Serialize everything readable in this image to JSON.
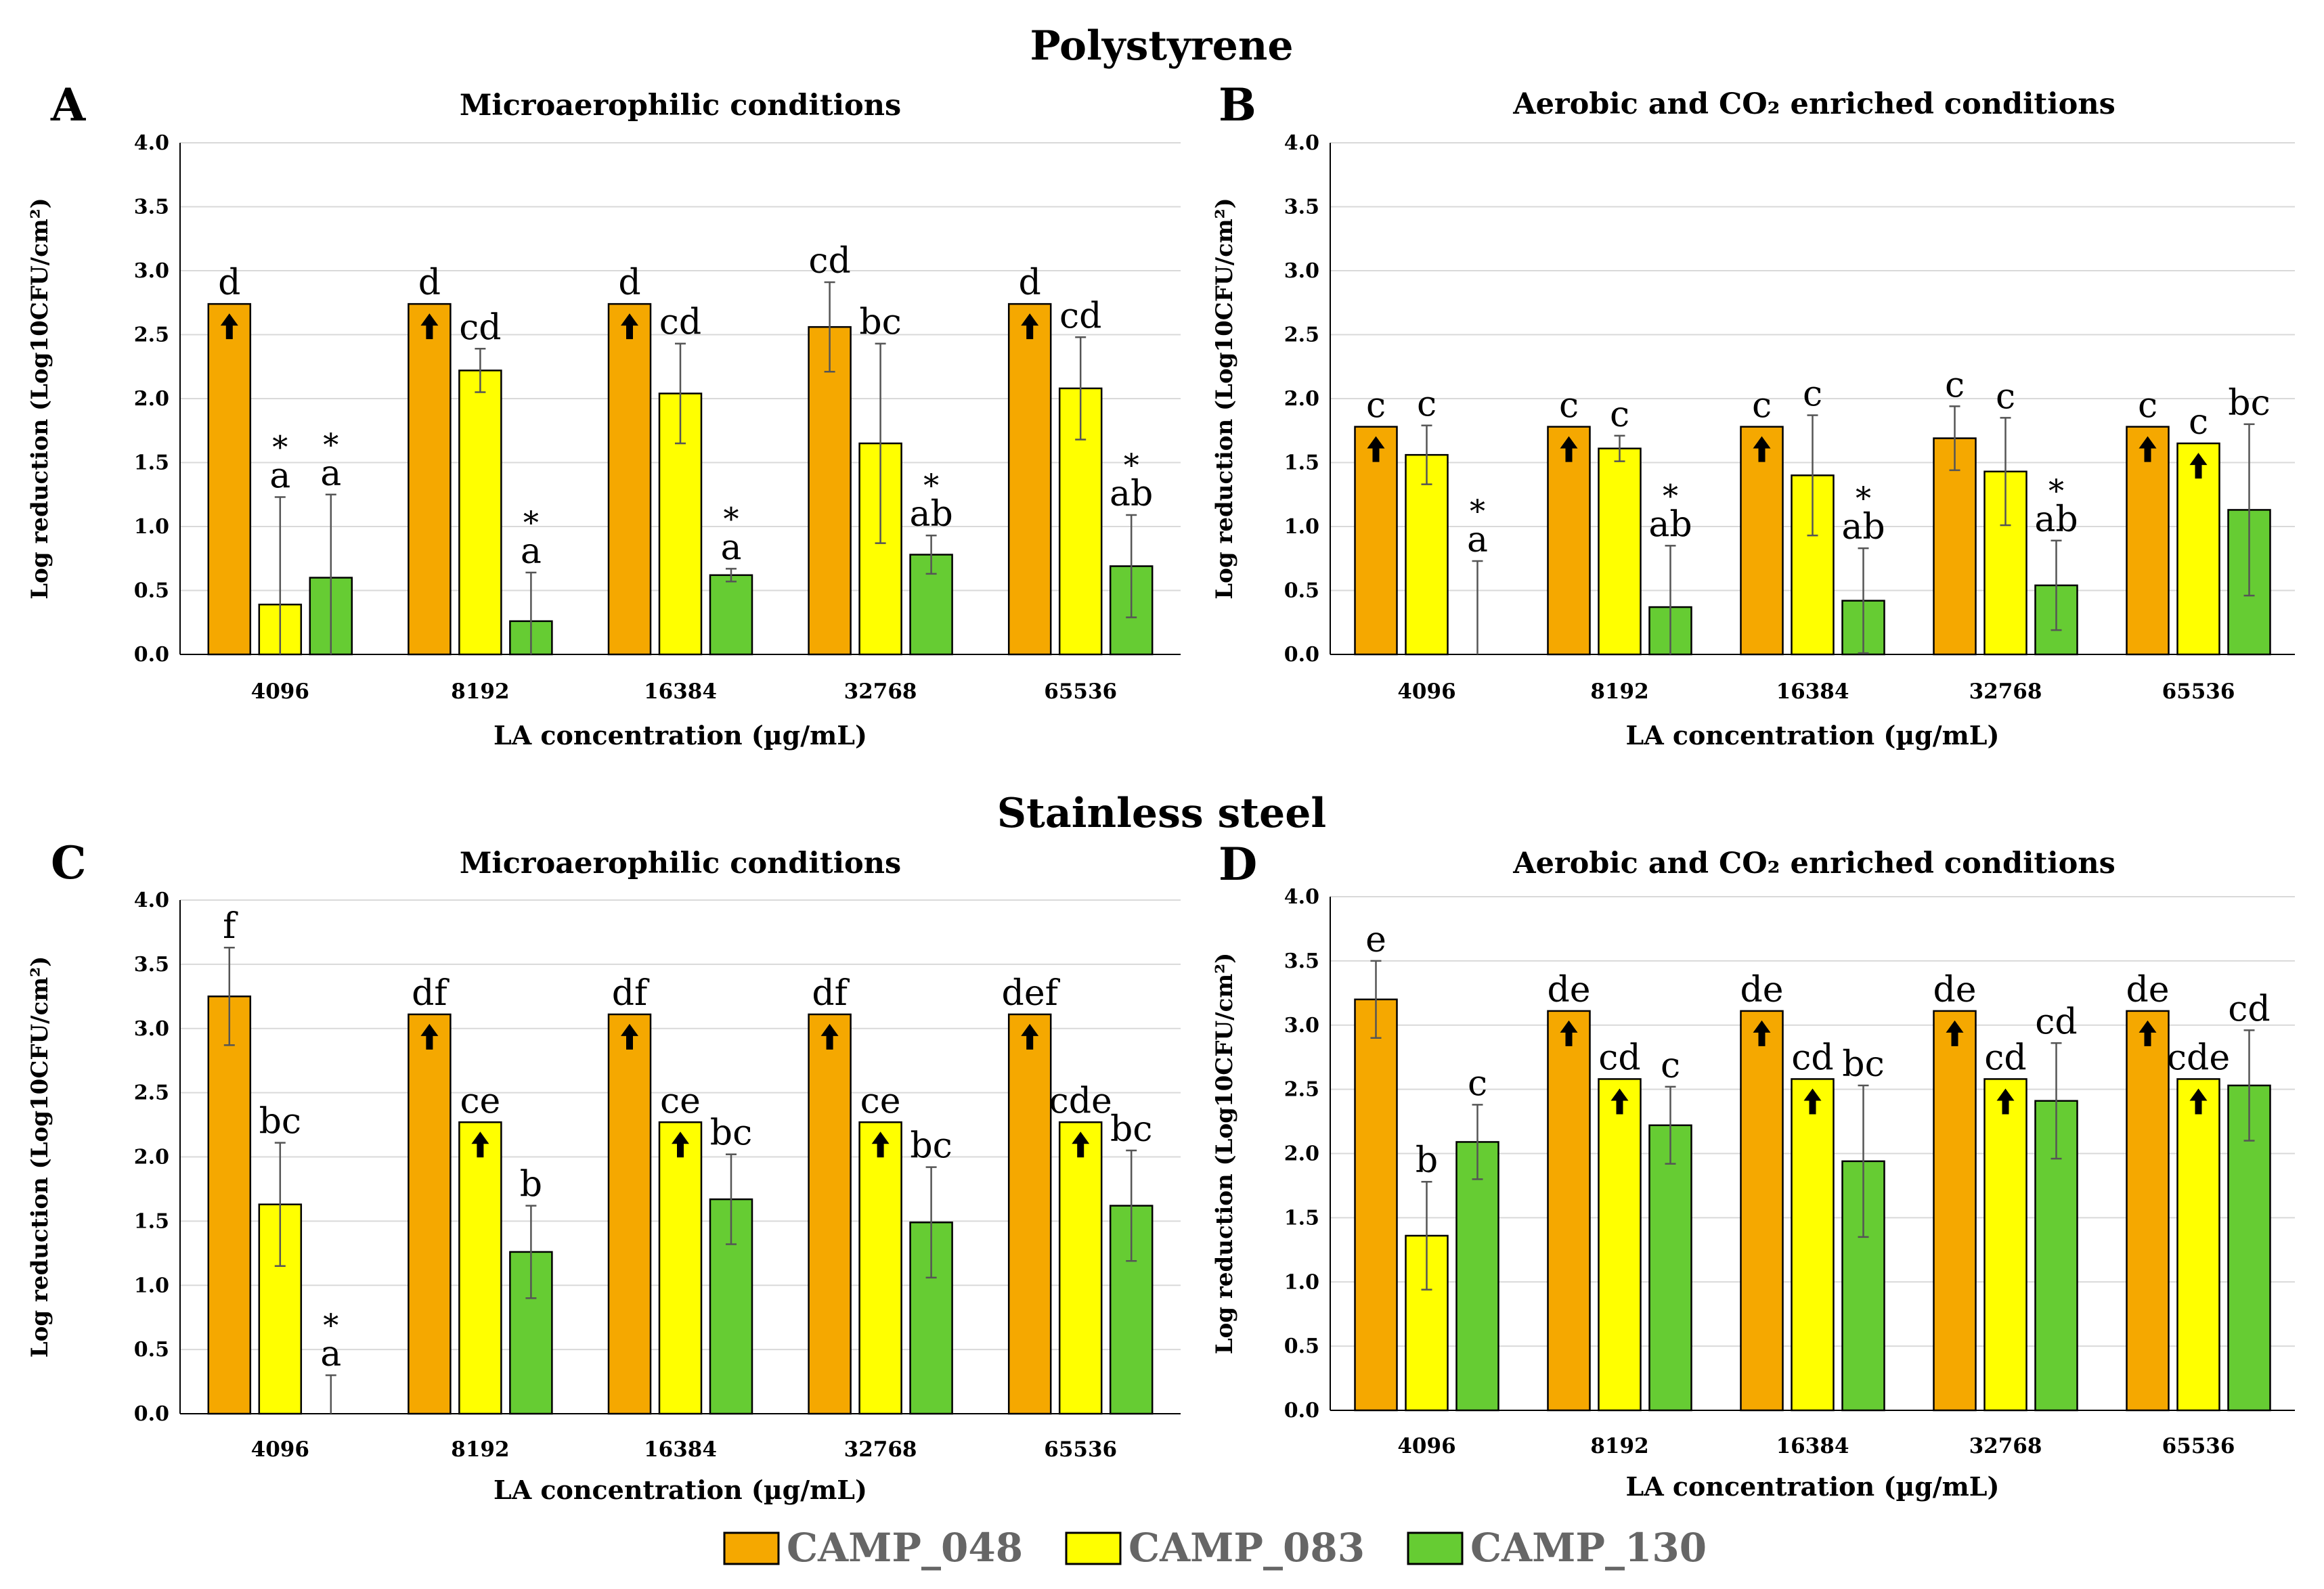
{
  "colors": {
    "CAMP_048": "#F5A800",
    "CAMP_083": "#FFFF00",
    "CAMP_130": "#66CC33",
    "grid": "#D9D9D9"
  },
  "section_titles": {
    "top": "Polystyrene",
    "bottom": "Stainless steel"
  },
  "legend": [
    "CAMP_048",
    "CAMP_083",
    "CAMP_130"
  ],
  "chart_data": [
    {
      "type": "bar",
      "panel": "A",
      "title": "Microaerophilic conditions",
      "xlabel": "LA concentration (µg/mL)",
      "ylabel": "Log reduction (Log10CFU/cm²)",
      "ylim": [
        0,
        4
      ],
      "yticks": [
        "0.0",
        "0.5",
        "1.0",
        "1.5",
        "2.0",
        "2.5",
        "3.0",
        "3.5",
        "4.0"
      ],
      "categories": [
        "4096",
        "8192",
        "16384",
        "32768",
        "65536"
      ],
      "series": [
        {
          "name": "CAMP_048",
          "values": [
            2.74,
            2.74,
            2.74,
            2.56,
            2.74
          ],
          "errors": [
            0,
            0,
            0,
            0.35,
            0
          ],
          "labels": [
            "d",
            "d",
            "d",
            "cd",
            "d"
          ],
          "stars": [
            false,
            false,
            false,
            false,
            false
          ],
          "arrows": [
            true,
            true,
            true,
            false,
            true
          ]
        },
        {
          "name": "CAMP_083",
          "values": [
            0.39,
            2.22,
            2.04,
            1.65,
            2.08
          ],
          "errors": [
            0.84,
            0.17,
            0.39,
            0.78,
            0.4
          ],
          "labels": [
            "a",
            "cd",
            "cd",
            "bc",
            "cd"
          ],
          "stars": [
            true,
            false,
            false,
            false,
            false
          ],
          "arrows": [
            false,
            false,
            false,
            false,
            false
          ]
        },
        {
          "name": "CAMP_130",
          "values": [
            0.6,
            0.26,
            0.62,
            0.78,
            0.69
          ],
          "errors": [
            0.65,
            0.38,
            0.05,
            0.15,
            0.4
          ],
          "labels": [
            "a",
            "a",
            "a",
            "ab",
            "ab"
          ],
          "stars": [
            true,
            true,
            true,
            true,
            true
          ],
          "arrows": [
            false,
            false,
            false,
            false,
            false
          ]
        }
      ]
    },
    {
      "type": "bar",
      "panel": "B",
      "title": "Aerobic and CO₂ enriched conditions",
      "xlabel": "LA concentration (µg/mL)",
      "ylabel": "Log reduction (Log10CFU/cm²)",
      "ylim": [
        0,
        4
      ],
      "yticks": [
        "0.0",
        "0.5",
        "1.0",
        "1.5",
        "2.0",
        "2.5",
        "3.0",
        "3.5",
        "4.0"
      ],
      "categories": [
        "4096",
        "8192",
        "16384",
        "32768",
        "65536"
      ],
      "series": [
        {
          "name": "CAMP_048",
          "values": [
            1.78,
            1.78,
            1.78,
            1.69,
            1.78
          ],
          "errors": [
            0,
            0,
            0,
            0.25,
            0
          ],
          "labels": [
            "c",
            "c",
            "c",
            "c",
            "c"
          ],
          "stars": [
            false,
            false,
            false,
            false,
            false
          ],
          "arrows": [
            true,
            true,
            true,
            false,
            true
          ]
        },
        {
          "name": "CAMP_083",
          "values": [
            1.56,
            1.61,
            1.4,
            1.43,
            1.65
          ],
          "errors": [
            0.23,
            0.1,
            0.47,
            0.42,
            0
          ],
          "labels": [
            "c",
            "c",
            "c",
            "c",
            "c"
          ],
          "stars": [
            false,
            false,
            false,
            false,
            false
          ],
          "arrows": [
            false,
            false,
            false,
            false,
            true
          ]
        },
        {
          "name": "CAMP_130",
          "values": [
            0,
            0.37,
            0.42,
            0.54,
            1.13
          ],
          "errors": [
            0.73,
            0.48,
            0.41,
            0.35,
            0.67
          ],
          "labels": [
            "a",
            "ab",
            "ab",
            "ab",
            "bc"
          ],
          "stars": [
            true,
            true,
            true,
            true,
            false
          ],
          "arrows": [
            false,
            false,
            false,
            false,
            false
          ]
        }
      ]
    },
    {
      "type": "bar",
      "panel": "C",
      "title": "Microaerophilic conditions",
      "xlabel": "LA concentration (µg/mL)",
      "ylabel": "Log reduction (Log10CFU/cm²)",
      "ylim": [
        0,
        4
      ],
      "yticks": [
        "0.0",
        "0.5",
        "1.0",
        "1.5",
        "2.0",
        "2.5",
        "3.0",
        "3.5",
        "4.0"
      ],
      "categories": [
        "4096",
        "8192",
        "16384",
        "32768",
        "65536"
      ],
      "series": [
        {
          "name": "CAMP_048",
          "values": [
            3.25,
            3.11,
            3.11,
            3.11,
            3.11
          ],
          "errors": [
            0.38,
            0,
            0,
            0,
            0
          ],
          "labels": [
            "f",
            "df",
            "df",
            "df",
            "def"
          ],
          "stars": [
            false,
            false,
            false,
            false,
            false
          ],
          "arrows": [
            false,
            true,
            true,
            true,
            true
          ]
        },
        {
          "name": "CAMP_083",
          "values": [
            1.63,
            2.27,
            2.27,
            2.27,
            2.27
          ],
          "errors": [
            0.48,
            0,
            0,
            0,
            0
          ],
          "labels": [
            "bc",
            "ce",
            "ce",
            "ce",
            "cde"
          ],
          "stars": [
            false,
            false,
            false,
            false,
            false
          ],
          "arrows": [
            false,
            true,
            true,
            true,
            true
          ]
        },
        {
          "name": "CAMP_130",
          "values": [
            0,
            1.26,
            1.67,
            1.49,
            1.62
          ],
          "errors": [
            0.3,
            0.36,
            0.35,
            0.43,
            0.43
          ],
          "labels": [
            "a",
            "b",
            "bc",
            "bc",
            "bc"
          ],
          "stars": [
            true,
            false,
            false,
            false,
            false
          ],
          "arrows": [
            false,
            false,
            false,
            false,
            false
          ]
        }
      ]
    },
    {
      "type": "bar",
      "panel": "D",
      "title": "Aerobic and CO₂ enriched  conditions",
      "xlabel": "LA concentration (µg/mL)",
      "ylabel": "Log reduction (Log10CFU/cm²)",
      "ylim": [
        0,
        4
      ],
      "yticks": [
        "0.0",
        "0.5",
        "1.0",
        "1.5",
        "2.0",
        "2.5",
        "3.0",
        "3.5",
        "4.0"
      ],
      "categories": [
        "4096",
        "8192",
        "16384",
        "32768",
        "65536"
      ],
      "series": [
        {
          "name": "CAMP_048",
          "values": [
            3.2,
            3.11,
            3.11,
            3.11,
            3.11
          ],
          "errors": [
            0.3,
            0,
            0,
            0,
            0
          ],
          "labels": [
            "e",
            "de",
            "de",
            "de",
            "de"
          ],
          "stars": [
            false,
            false,
            false,
            false,
            false
          ],
          "arrows": [
            false,
            true,
            true,
            true,
            true
          ]
        },
        {
          "name": "CAMP_083",
          "values": [
            1.36,
            2.58,
            2.58,
            2.58,
            2.58
          ],
          "errors": [
            0.42,
            0,
            0,
            0,
            0
          ],
          "labels": [
            "b",
            "cd",
            "cd",
            "cd",
            "cde"
          ],
          "stars": [
            false,
            false,
            false,
            false,
            false
          ],
          "arrows": [
            false,
            true,
            true,
            true,
            true
          ]
        },
        {
          "name": "CAMP_130",
          "values": [
            2.09,
            2.22,
            1.94,
            2.41,
            2.53
          ],
          "errors": [
            0.29,
            0.3,
            0.59,
            0.45,
            0.43
          ],
          "labels": [
            "c",
            "c",
            "bc",
            "cd",
            "cd"
          ],
          "stars": [
            false,
            false,
            false,
            false,
            false
          ],
          "arrows": [
            false,
            false,
            false,
            false,
            false
          ]
        }
      ]
    }
  ]
}
